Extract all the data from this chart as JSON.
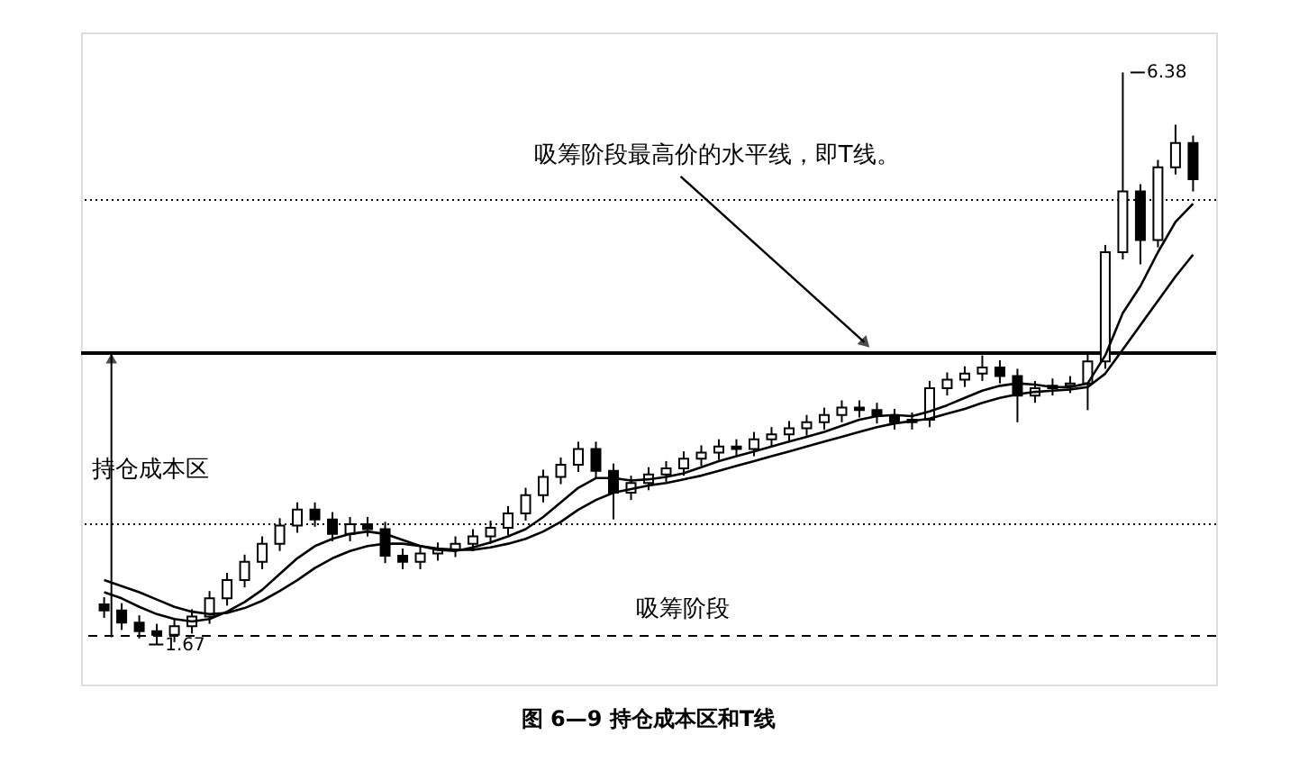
{
  "chart_data": {
    "type": "candlestick",
    "title": "图 6—9  持仓成本区和T线",
    "categories": [
      null,
      null,
      null,
      null,
      null,
      null,
      null,
      null,
      null,
      null,
      null,
      null,
      null,
      null,
      null,
      null,
      null,
      null,
      null,
      null,
      null,
      null,
      null,
      null,
      null,
      null,
      null,
      null,
      null,
      null,
      null,
      null,
      null,
      null,
      null,
      null,
      null,
      null,
      null,
      null,
      null,
      null,
      null,
      null,
      null,
      null,
      null,
      null,
      null,
      null,
      null,
      null,
      null,
      null,
      null,
      null,
      null,
      null,
      null,
      null,
      null,
      null,
      null
    ],
    "ohlc": [
      [
        2.0,
        2.06,
        1.89,
        1.95
      ],
      [
        1.95,
        2.01,
        1.79,
        1.85
      ],
      [
        1.85,
        1.91,
        1.72,
        1.78
      ],
      [
        1.78,
        1.84,
        1.67,
        1.75
      ],
      [
        1.75,
        1.88,
        1.69,
        1.82
      ],
      [
        1.82,
        1.96,
        1.76,
        1.9
      ],
      [
        1.9,
        2.11,
        1.84,
        2.05
      ],
      [
        2.05,
        2.26,
        1.99,
        2.2
      ],
      [
        2.2,
        2.41,
        2.14,
        2.35
      ],
      [
        2.35,
        2.56,
        2.29,
        2.5
      ],
      [
        2.5,
        2.71,
        2.44,
        2.65
      ],
      [
        2.65,
        2.84,
        2.59,
        2.78
      ],
      [
        2.78,
        2.84,
        2.64,
        2.7
      ],
      [
        2.7,
        2.76,
        2.52,
        2.58
      ],
      [
        2.58,
        2.72,
        2.52,
        2.66
      ],
      [
        2.66,
        2.72,
        2.56,
        2.62
      ],
      [
        2.62,
        2.68,
        2.34,
        2.4
      ],
      [
        2.4,
        2.46,
        2.29,
        2.35
      ],
      [
        2.35,
        2.48,
        2.29,
        2.42
      ],
      [
        2.42,
        2.51,
        2.36,
        2.45
      ],
      [
        2.45,
        2.56,
        2.39,
        2.5
      ],
      [
        2.5,
        2.62,
        2.44,
        2.56
      ],
      [
        2.56,
        2.69,
        2.5,
        2.63
      ],
      [
        2.63,
        2.81,
        2.57,
        2.75
      ],
      [
        2.75,
        2.96,
        2.69,
        2.9
      ],
      [
        2.9,
        3.11,
        2.84,
        3.05
      ],
      [
        3.05,
        3.21,
        2.99,
        3.15
      ],
      [
        3.15,
        3.34,
        3.09,
        3.28
      ],
      [
        3.28,
        3.34,
        3.04,
        3.1
      ],
      [
        3.1,
        3.16,
        2.7,
        2.92
      ],
      [
        2.92,
        3.06,
        2.86,
        3.0
      ],
      [
        3.0,
        3.13,
        2.94,
        3.07
      ],
      [
        3.07,
        3.18,
        3.01,
        3.12
      ],
      [
        3.12,
        3.26,
        3.06,
        3.2
      ],
      [
        3.2,
        3.31,
        3.14,
        3.25
      ],
      [
        3.25,
        3.36,
        3.19,
        3.3
      ],
      [
        3.3,
        3.36,
        3.22,
        3.28
      ],
      [
        3.28,
        3.42,
        3.22,
        3.36
      ],
      [
        3.36,
        3.46,
        3.3,
        3.4
      ],
      [
        3.4,
        3.51,
        3.34,
        3.45
      ],
      [
        3.45,
        3.56,
        3.39,
        3.5
      ],
      [
        3.5,
        3.62,
        3.44,
        3.56
      ],
      [
        3.56,
        3.68,
        3.5,
        3.62
      ],
      [
        3.62,
        3.68,
        3.54,
        3.6
      ],
      [
        3.6,
        3.66,
        3.49,
        3.55
      ],
      [
        3.55,
        3.61,
        3.44,
        3.5
      ],
      [
        3.5,
        3.58,
        3.44,
        3.52
      ],
      [
        3.52,
        3.84,
        3.46,
        3.78
      ],
      [
        3.78,
        3.91,
        3.72,
        3.85
      ],
      [
        3.85,
        3.96,
        3.79,
        3.9
      ],
      [
        3.9,
        4.05,
        3.84,
        3.95
      ],
      [
        3.95,
        4.01,
        3.82,
        3.88
      ],
      [
        3.88,
        3.94,
        3.5,
        3.72
      ],
      [
        3.72,
        3.84,
        3.66,
        3.78
      ],
      [
        3.78,
        3.86,
        3.72,
        3.8
      ],
      [
        3.8,
        3.88,
        3.74,
        3.82
      ],
      [
        3.82,
        4.06,
        3.6,
        4.0
      ],
      [
        4.0,
        4.96,
        3.94,
        4.9
      ],
      [
        4.9,
        6.38,
        4.84,
        5.4
      ],
      [
        5.4,
        5.46,
        4.8,
        5.0
      ],
      [
        5.0,
        5.66,
        4.94,
        5.6
      ],
      [
        5.6,
        5.95,
        5.54,
        5.8
      ],
      [
        5.8,
        5.86,
        5.4,
        5.5
      ]
    ],
    "series": [
      {
        "type": "line",
        "color": "#000000",
        "values": [
          2.1,
          2.05,
          1.98,
          1.92,
          1.88,
          1.86,
          1.88,
          1.94,
          2.02,
          2.12,
          2.25,
          2.38,
          2.48,
          2.54,
          2.58,
          2.6,
          2.58,
          2.53,
          2.48,
          2.45,
          2.44,
          2.47,
          2.51,
          2.56,
          2.62,
          2.72,
          2.84,
          2.96,
          3.04,
          3.04,
          3.02,
          3.03,
          3.05,
          3.08,
          3.13,
          3.18,
          3.22,
          3.26,
          3.3,
          3.34,
          3.38,
          3.42,
          3.47,
          3.52,
          3.55,
          3.56,
          3.55,
          3.59,
          3.64,
          3.7,
          3.76,
          3.8,
          3.82,
          3.81,
          3.79,
          3.79,
          3.82,
          4.05,
          4.4,
          4.62,
          4.9,
          5.15,
          5.3
        ]
      },
      {
        "type": "line",
        "color": "#000000",
        "values": [
          2.2,
          2.15,
          2.1,
          2.04,
          1.98,
          1.94,
          1.92,
          1.93,
          1.97,
          2.03,
          2.11,
          2.2,
          2.3,
          2.38,
          2.44,
          2.48,
          2.5,
          2.5,
          2.48,
          2.46,
          2.45,
          2.45,
          2.47,
          2.5,
          2.54,
          2.6,
          2.68,
          2.78,
          2.86,
          2.92,
          2.95,
          2.98,
          3.0,
          3.03,
          3.06,
          3.1,
          3.14,
          3.18,
          3.22,
          3.26,
          3.3,
          3.34,
          3.38,
          3.42,
          3.46,
          3.49,
          3.51,
          3.53,
          3.57,
          3.61,
          3.66,
          3.7,
          3.73,
          3.75,
          3.76,
          3.77,
          3.79,
          3.9,
          4.1,
          4.3,
          4.5,
          4.7,
          4.88
        ]
      }
    ],
    "ref_lines": [
      {
        "axis": "y",
        "value": 4.07,
        "line_style": "solid",
        "color": "#000000"
      },
      {
        "axis": "y",
        "value": 5.33,
        "line_style": "dotted",
        "color": "#000000"
      },
      {
        "axis": "y",
        "value": 2.66,
        "line_style": "dotted",
        "color": "#000000"
      },
      {
        "axis": "y",
        "value": 1.74,
        "line_style": "dashed",
        "color": "#000000"
      }
    ],
    "annotations": [
      "吸筹阶段最高价的水平线，即T线。",
      "吸筹阶段",
      "持仓成本区",
      "6.38",
      {
        "text": "1.67",
        "y": 1.67
      }
    ],
    "tick_labels": false
  }
}
